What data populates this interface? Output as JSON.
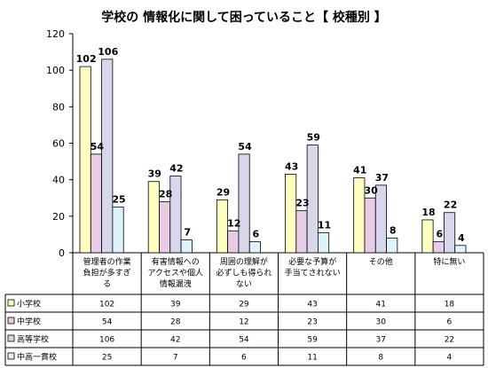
{
  "chart_data": {
    "type": "bar",
    "title": "学校の 情報化に関して困っていること【 校種別 】",
    "categories": [
      [
        "管理者の作業",
        "負担が多すぎ",
        "る"
      ],
      [
        "有害情報への",
        "アクセスや個人",
        "情報漏洩"
      ],
      [
        "周囲の理解が",
        "必ずしも得られ",
        "ない"
      ],
      [
        "必要な予算が",
        "手当てされない"
      ],
      [
        "その他"
      ],
      [
        "特に無い"
      ]
    ],
    "series": [
      {
        "name": "小学校",
        "color": "#FFFFC0",
        "values": [
          102,
          39,
          29,
          43,
          41,
          18
        ]
      },
      {
        "name": "中学校",
        "color": "#E8CCE6",
        "values": [
          54,
          28,
          12,
          23,
          30,
          6
        ]
      },
      {
        "name": "高等学校",
        "color": "#D7D7EC",
        "values": [
          106,
          42,
          54,
          59,
          37,
          22
        ]
      },
      {
        "name": "中高一貫校",
        "color": "#DDF5FA",
        "values": [
          25,
          7,
          6,
          11,
          8,
          4
        ]
      }
    ],
    "ylim": [
      0,
      120
    ],
    "yticks": [
      0,
      20,
      40,
      60,
      80,
      100,
      120
    ],
    "legend": "table-below",
    "grid": false
  }
}
